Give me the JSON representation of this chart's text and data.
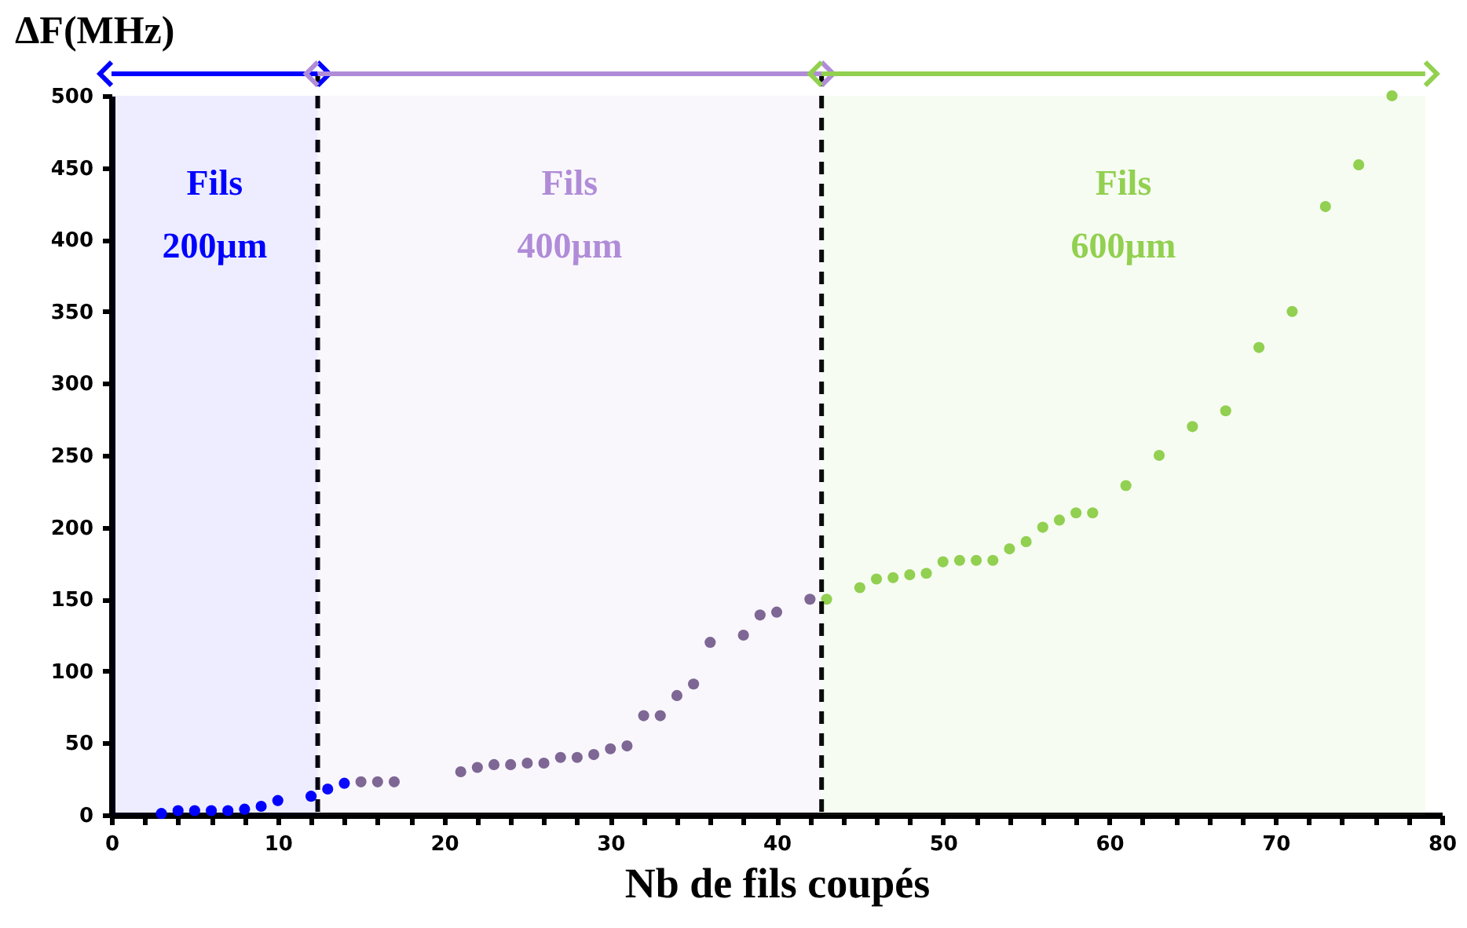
{
  "chart_data": {
    "type": "scatter",
    "xlabel": "Nb de fils coupés",
    "ylabel": "ΔF(MHz)",
    "series": [
      {
        "color": "#0000ff",
        "x": [
          3,
          4,
          5,
          6,
          7,
          8,
          9,
          10,
          12,
          13,
          14
        ],
        "values": [
          1,
          3,
          3,
          3,
          3,
          4,
          6,
          10,
          13,
          18,
          22
        ]
      },
      {
        "color": "#7b6590",
        "x": [
          15,
          16,
          17,
          21,
          22,
          23,
          24,
          25,
          26,
          27,
          28,
          29,
          30,
          31,
          32,
          33,
          34,
          35,
          36,
          38,
          39,
          40,
          42
        ],
        "values": [
          23,
          23,
          23,
          30,
          33,
          35,
          35,
          36,
          36,
          40,
          40,
          42,
          46,
          48,
          69,
          69,
          83,
          91,
          120,
          125,
          139,
          141,
          150
        ]
      },
      {
        "color": "#92d050",
        "x": [
          43,
          45,
          46,
          47,
          48,
          49,
          50,
          51,
          52,
          53,
          54,
          55,
          56,
          57,
          58,
          59,
          61,
          63,
          65,
          67,
          69,
          71,
          73,
          75,
          77
        ],
        "values": [
          150,
          158,
          164,
          165,
          167,
          168,
          176,
          177,
          177,
          177,
          185,
          190,
          200,
          205,
          210,
          210,
          229,
          250,
          270,
          281,
          325,
          350,
          423,
          452,
          500
        ]
      }
    ],
    "marker": "circle",
    "xlim": [
      0,
      80
    ],
    "xticks": [
      0,
      {
        "value": 2,
        "label": null
      },
      {
        "value": 4,
        "label": null
      },
      {
        "value": 6,
        "label": null
      },
      {
        "value": 8,
        "label": null
      },
      10,
      {
        "value": 12,
        "label": null
      },
      {
        "value": 14,
        "label": null
      },
      {
        "value": 16,
        "label": null
      },
      {
        "value": 18,
        "label": null
      },
      20,
      {
        "value": 22,
        "label": null
      },
      {
        "value": 24,
        "label": null
      },
      {
        "value": 26,
        "label": null
      },
      {
        "value": 28,
        "label": null
      },
      30,
      {
        "value": 32,
        "label": null
      },
      {
        "value": 34,
        "label": null
      },
      {
        "value": 36,
        "label": null
      },
      {
        "value": 38,
        "label": null
      },
      40,
      {
        "value": 42,
        "label": null
      },
      {
        "value": 44,
        "label": null
      },
      {
        "value": 46,
        "label": null
      },
      {
        "value": 48,
        "label": null
      },
      50,
      {
        "value": 52,
        "label": null
      },
      {
        "value": 54,
        "label": null
      },
      {
        "value": 56,
        "label": null
      },
      {
        "value": 58,
        "label": null
      },
      60,
      {
        "value": 62,
        "label": null
      },
      {
        "value": 64,
        "label": null
      },
      {
        "value": 66,
        "label": null
      },
      {
        "value": 68,
        "label": null
      },
      70,
      {
        "value": 72,
        "label": null
      },
      {
        "value": 74,
        "label": null
      },
      {
        "value": 76,
        "label": null
      },
      {
        "value": 78,
        "label": null
      },
      80
    ],
    "ylim": [
      0,
      500
    ],
    "yticks": [
      0,
      50,
      100,
      150,
      200,
      250,
      300,
      350,
      400,
      450,
      500
    ],
    "ref_lines": [
      {
        "axis": "x",
        "value": 12.4,
        "color": "#000000",
        "line_style": "dashed"
      },
      {
        "axis": "x",
        "value": 42.7,
        "color": "#000000",
        "line_style": "dashed"
      }
    ],
    "bands": [
      {
        "axis": "x",
        "from": 0,
        "to": 12.4,
        "label": "Fils 200µm",
        "color": "#0000ff"
      },
      {
        "axis": "x",
        "from": 12.4,
        "to": 42.7,
        "label": "Fils 400µm",
        "color": "#b08cd8"
      },
      {
        "axis": "x",
        "from": 42.7,
        "to": 79,
        "label": "Fils 600µm",
        "color": "#92d050"
      }
    ]
  }
}
